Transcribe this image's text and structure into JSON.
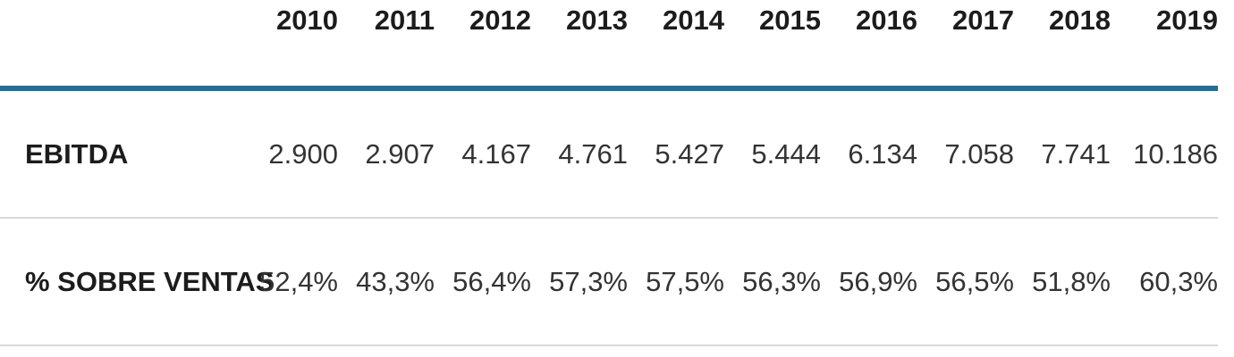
{
  "colors": {
    "header_rule": "#2a6b96",
    "row_divider": "#d9d9d9",
    "header_text": "#1c1c1c",
    "value_text": "#333333",
    "background": "#ffffff"
  },
  "table": {
    "years": [
      "2010",
      "2011",
      "2012",
      "2013",
      "2014",
      "2015",
      "2016",
      "2017",
      "2018",
      "2019"
    ],
    "rows": [
      {
        "label": "EBITDA",
        "values": [
          "2.900",
          "2.907",
          "4.167",
          "4.761",
          "5.427",
          "5.444",
          "6.134",
          "7.058",
          "7.741",
          "10.186"
        ]
      },
      {
        "label": "% SOBRE VENTAS",
        "values": [
          "52,4%",
          "43,3%",
          "56,4%",
          "57,3%",
          "57,5%",
          "56,3%",
          "56,9%",
          "56,5%",
          "51,8%",
          "60,3%"
        ]
      }
    ]
  },
  "chart_data": {
    "type": "table",
    "categories": [
      "2010",
      "2011",
      "2012",
      "2013",
      "2014",
      "2015",
      "2016",
      "2017",
      "2018",
      "2019"
    ],
    "series": [
      {
        "name": "EBITDA",
        "values": [
          2900,
          2907,
          4167,
          4761,
          5427,
          5444,
          6134,
          7058,
          7741,
          10186
        ]
      },
      {
        "name": "% SOBRE VENTAS",
        "values": [
          52.4,
          43.3,
          56.4,
          57.3,
          57.5,
          56.3,
          56.9,
          56.5,
          51.8,
          60.3
        ]
      }
    ],
    "title": "",
    "xlabel": "",
    "ylabel": "",
    "notes": "Thousands separator is a dot; decimal separator is a comma (Spanish formatting). Percent row values shown with % suffix."
  }
}
